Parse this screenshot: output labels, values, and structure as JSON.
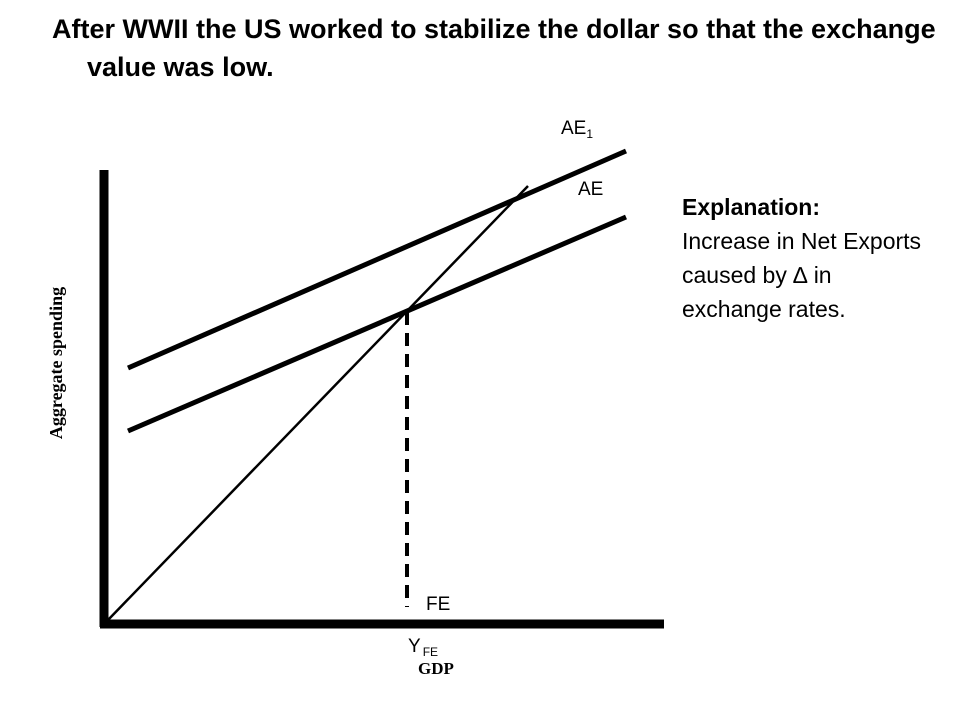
{
  "title": "After WWII the US worked to stabilize the dollar so that the exchange value was low.",
  "diagram": {
    "y_axis_label": "Aggregate spending",
    "x_axis_label": "GDP",
    "curves": {
      "ae1": {
        "label_main": "AE",
        "label_sub": "1"
      },
      "ae": {
        "label": "AE"
      }
    },
    "fe_label": "FE",
    "y_fe": {
      "label_main": "Y",
      "label_sub": "FE"
    }
  },
  "explanation": {
    "heading": "Explanation:",
    "body": "Increase in Net Exports caused by ∆ in exchange rates."
  },
  "colors": {
    "background": "#ffffff",
    "ink": "#000000"
  }
}
